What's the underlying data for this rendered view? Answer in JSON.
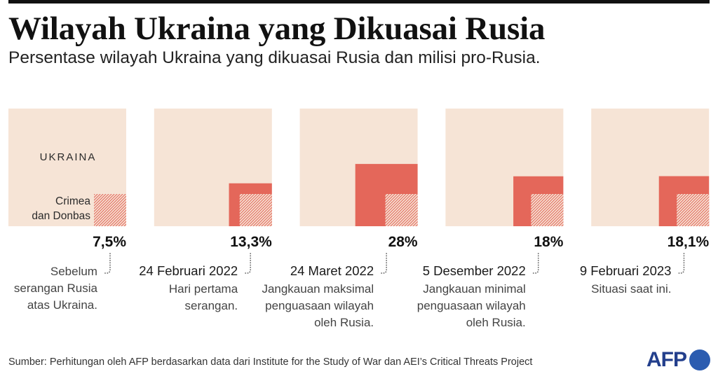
{
  "chart_data": {
    "type": "area",
    "title": "Wilayah Ukraina yang Dikuasai Rusia",
    "subtitle": "Persentase wilayah Ukraina yang dikuasai Rusia dan milisi pro-Rusia.",
    "total": 100,
    "values": [
      7.5,
      13.3,
      28,
      18,
      18.1
    ],
    "hatched_value": 7.5,
    "territory_label": "UKRAINA",
    "hatched_label": [
      "Crimea",
      "dan Donbas"
    ],
    "panels": [
      {
        "value_label": "7,5%",
        "description": [
          "Sebelum",
          "serangan Rusia",
          "atas Ukraina."
        ]
      },
      {
        "date": "24 Februari 2022",
        "value_label": "13,3%",
        "description": [
          "Hari pertama",
          "serangan."
        ]
      },
      {
        "date": "24 Maret 2022",
        "value_label": "28%",
        "description": [
          "Jangkauan maksimal",
          "penguasaan wilayah",
          "oleh Rusia."
        ]
      },
      {
        "date": "5 Desember 2022",
        "value_label": "18%",
        "description": [
          "Jangkauan minimal",
          "penguasaan wilayah",
          "oleh Rusia."
        ]
      },
      {
        "date": "9 Februari 2023",
        "value_label": "18,1%",
        "description": [
          "Situasi saat ini."
        ]
      }
    ]
  },
  "source": "Sumber: Perhitungan oleh AFP berdasarkan data dari Institute for the Study of War dan AEI’s Critical Threats Project",
  "logo": {
    "text": "AFP"
  },
  "colors": {
    "territory": "#f6e4d6",
    "occupied": "#e4675a",
    "rule": "#111111",
    "logo_text": "#233f8c",
    "logo_circle": "#2b5cb0"
  }
}
